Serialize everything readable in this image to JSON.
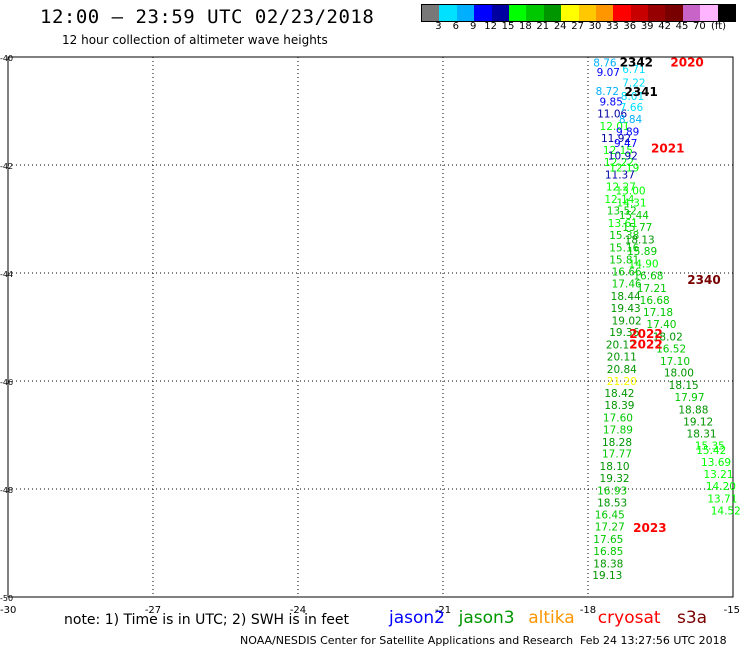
{
  "header": {
    "title": "12:00 – 23:59 UTC 02/23/2018",
    "subtitle": "12 hour collection of altimeter wave heights"
  },
  "color_scale": {
    "unit": "(ft)",
    "colors": [
      "#787878",
      "#00e0ff",
      "#00b0ff",
      "#0000ff",
      "#0000a0",
      "#00ff00",
      "#00c800",
      "#009600",
      "#ffff00",
      "#ffc800",
      "#ff9600",
      "#ff0000",
      "#c80000",
      "#960000",
      "#780000",
      "#c864c8",
      "#ffb4ff",
      "#000000"
    ],
    "ticks": [
      "3",
      "6",
      "9",
      "12",
      "15",
      "18",
      "21",
      "24",
      "27",
      "30",
      "33",
      "36",
      "39",
      "42",
      "45",
      "70"
    ]
  },
  "map": {
    "x_ticks": [
      "-30",
      "-27",
      "-24",
      "-21",
      "-18",
      "-15"
    ],
    "y_ticks": [
      "-40",
      "-42",
      "-44",
      "-46",
      "-48",
      "-50"
    ],
    "x_range": [
      -30,
      -15
    ],
    "y_range": [
      -50,
      -40
    ]
  },
  "tracks": [
    {
      "lon": -17.65,
      "lat": -40.18,
      "value": "8.76",
      "color": "#00b0ff"
    },
    {
      "lon": -17.58,
      "lat": -40.35,
      "value": "9.07",
      "color": "#0000ff"
    },
    {
      "lon": -17.6,
      "lat": -40.7,
      "value": "8.72",
      "color": "#00b0ff"
    },
    {
      "lon": -17.52,
      "lat": -40.9,
      "value": "9.85",
      "color": "#0000ff"
    },
    {
      "lon": -17.5,
      "lat": -41.12,
      "value": "11.06",
      "color": "#0000a0"
    },
    {
      "lon": -17.45,
      "lat": -41.35,
      "value": "12.01",
      "color": "#00ff00"
    },
    {
      "lon": -17.42,
      "lat": -41.57,
      "value": "11.92",
      "color": "#0000a0"
    },
    {
      "lon": -17.38,
      "lat": -41.8,
      "value": "12.15",
      "color": "#00ff00"
    },
    {
      "lon": -17.36,
      "lat": -42.02,
      "value": "12.22",
      "color": "#00ff00"
    },
    {
      "lon": -17.34,
      "lat": -42.25,
      "value": "11.37",
      "color": "#0000a0"
    },
    {
      "lon": -17.32,
      "lat": -42.47,
      "value": "12.27",
      "color": "#00ff00"
    },
    {
      "lon": -17.35,
      "lat": -42.7,
      "value": "12.14",
      "color": "#00ff00"
    },
    {
      "lon": -17.3,
      "lat": -42.92,
      "value": "13.52",
      "color": "#00c800"
    },
    {
      "lon": -17.28,
      "lat": -43.15,
      "value": "13.61",
      "color": "#00ff00"
    },
    {
      "lon": -17.25,
      "lat": -43.37,
      "value": "15.38",
      "color": "#00c800"
    },
    {
      "lon": -17.25,
      "lat": -43.6,
      "value": "15.16",
      "color": "#00c800"
    },
    {
      "lon": -17.25,
      "lat": -43.82,
      "value": "15.81",
      "color": "#00c800"
    },
    {
      "lon": -17.2,
      "lat": -44.05,
      "value": "16.66",
      "color": "#00c800"
    },
    {
      "lon": -17.2,
      "lat": -44.27,
      "value": "17.46",
      "color": "#00c800"
    },
    {
      "lon": -17.22,
      "lat": -44.5,
      "value": "18.44",
      "color": "#009600"
    },
    {
      "lon": -17.22,
      "lat": -44.72,
      "value": "19.43",
      "color": "#009600"
    },
    {
      "lon": -17.2,
      "lat": -44.95,
      "value": "19.02",
      "color": "#009600"
    },
    {
      "lon": -17.25,
      "lat": -45.17,
      "value": "19.36",
      "color": "#009600"
    },
    {
      "lon": -17.32,
      "lat": -45.4,
      "value": "20.12",
      "color": "#009600"
    },
    {
      "lon": -17.3,
      "lat": -45.62,
      "value": "20.11",
      "color": "#009600"
    },
    {
      "lon": -17.3,
      "lat": -45.85,
      "value": "20.84",
      "color": "#009600"
    },
    {
      "lon": -17.3,
      "lat": -46.07,
      "value": "21.20",
      "color": "#ffff00"
    },
    {
      "lon": -17.35,
      "lat": -46.3,
      "value": "18.42",
      "color": "#009600"
    },
    {
      "lon": -17.35,
      "lat": -46.52,
      "value": "18.39",
      "color": "#009600"
    },
    {
      "lon": -17.38,
      "lat": -46.75,
      "value": "17.60",
      "color": "#00c800"
    },
    {
      "lon": -17.38,
      "lat": -46.97,
      "value": "17.89",
      "color": "#00c800"
    },
    {
      "lon": -17.4,
      "lat": -47.2,
      "value": "18.28",
      "color": "#009600"
    },
    {
      "lon": -17.4,
      "lat": -47.42,
      "value": "17.77",
      "color": "#00c800"
    },
    {
      "lon": -17.45,
      "lat": -47.65,
      "value": "18.10",
      "color": "#009600"
    },
    {
      "lon": -17.45,
      "lat": -47.87,
      "value": "19.32",
      "color": "#009600"
    },
    {
      "lon": -17.5,
      "lat": -48.1,
      "value": "16.93",
      "color": "#00c800"
    },
    {
      "lon": -17.5,
      "lat": -48.32,
      "value": "18.53",
      "color": "#009600"
    },
    {
      "lon": -17.55,
      "lat": -48.55,
      "value": "16.45",
      "color": "#00c800"
    },
    {
      "lon": -17.55,
      "lat": -48.77,
      "value": "17.27",
      "color": "#00c800"
    },
    {
      "lon": -17.58,
      "lat": -49.0,
      "value": "17.65",
      "color": "#00c800"
    },
    {
      "lon": -17.58,
      "lat": -49.22,
      "value": "16.85",
      "color": "#00c800"
    },
    {
      "lon": -17.58,
      "lat": -49.45,
      "value": "18.38",
      "color": "#009600"
    },
    {
      "lon": -17.6,
      "lat": -49.67,
      "value": "19.13",
      "color": "#009600"
    },
    {
      "lon": -17.05,
      "lat": -40.3,
      "value": "6.71",
      "color": "#00e0ff"
    },
    {
      "lon": -17.05,
      "lat": -40.55,
      "value": "7.22",
      "color": "#00e0ff"
    },
    {
      "lon": -17.08,
      "lat": -40.8,
      "value": "8.01",
      "color": "#00e0ff"
    },
    {
      "lon": -17.1,
      "lat": -41.0,
      "value": "7.66",
      "color": "#00e0ff"
    },
    {
      "lon": -17.12,
      "lat": -41.22,
      "value": "8.84",
      "color": "#00b0ff"
    },
    {
      "lon": -17.18,
      "lat": -41.45,
      "value": "9.89",
      "color": "#0000ff"
    },
    {
      "lon": -17.22,
      "lat": -41.67,
      "value": "9.47",
      "color": "#0000ff"
    },
    {
      "lon": -17.28,
      "lat": -41.9,
      "value": "10.92",
      "color": "#0000a0"
    },
    {
      "lon": -17.25,
      "lat": -42.12,
      "value": "12.19",
      "color": "#00ff00"
    },
    {
      "lon": -17.12,
      "lat": -42.55,
      "value": "13.00",
      "color": "#00ff00"
    },
    {
      "lon": -17.1,
      "lat": -42.77,
      "value": "14.31",
      "color": "#00ff00"
    },
    {
      "lon": -17.05,
      "lat": -43.0,
      "value": "15.44",
      "color": "#00c800"
    },
    {
      "lon": -16.98,
      "lat": -43.22,
      "value": "15.77",
      "color": "#00c800"
    },
    {
      "lon": -16.93,
      "lat": -43.45,
      "value": "18.13",
      "color": "#009600"
    },
    {
      "lon": -16.88,
      "lat": -43.67,
      "value": "15.89",
      "color": "#00c800"
    },
    {
      "lon": -16.85,
      "lat": -43.9,
      "value": "14.90",
      "color": "#00ff00"
    },
    {
      "lon": -16.75,
      "lat": -44.12,
      "value": "16.68",
      "color": "#00c800"
    },
    {
      "lon": -16.68,
      "lat": -44.35,
      "value": "17.21",
      "color": "#00c800"
    },
    {
      "lon": -16.62,
      "lat": -44.57,
      "value": "16.68",
      "color": "#00c800"
    },
    {
      "lon": -16.55,
      "lat": -44.8,
      "value": "17.18",
      "color": "#00c800"
    },
    {
      "lon": -16.48,
      "lat": -45.02,
      "value": "17.40",
      "color": "#00c800"
    },
    {
      "lon": -16.35,
      "lat": -45.25,
      "value": "18.02",
      "color": "#009600"
    },
    {
      "lon": -16.28,
      "lat": -45.47,
      "value": "16.52",
      "color": "#00c800"
    },
    {
      "lon": -16.2,
      "lat": -45.7,
      "value": "17.10",
      "color": "#00c800"
    },
    {
      "lon": -16.12,
      "lat": -45.92,
      "value": "18.00",
      "color": "#009600"
    },
    {
      "lon": -16.02,
      "lat": -46.15,
      "value": "18.15",
      "color": "#009600"
    },
    {
      "lon": -15.9,
      "lat": -46.37,
      "value": "17.97",
      "color": "#00c800"
    },
    {
      "lon": -15.82,
      "lat": -46.6,
      "value": "18.88",
      "color": "#009600"
    },
    {
      "lon": -15.72,
      "lat": -46.82,
      "value": "19.12",
      "color": "#009600"
    },
    {
      "lon": -15.65,
      "lat": -47.05,
      "value": "18.31",
      "color": "#009600"
    },
    {
      "lon": -15.48,
      "lat": -47.27,
      "value": "15.35",
      "color": "#00ff00"
    },
    {
      "lon": -15.45,
      "lat": -47.35,
      "value": "15.42",
      "color": "#00ff00"
    },
    {
      "lon": -15.35,
      "lat": -47.57,
      "value": "13.69",
      "color": "#00ff00"
    },
    {
      "lon": -15.3,
      "lat": -47.8,
      "value": "13.21",
      "color": "#00ff00"
    },
    {
      "lon": -15.25,
      "lat": -48.02,
      "value": "14.20",
      "color": "#00ff00"
    },
    {
      "lon": -15.22,
      "lat": -48.25,
      "value": "13.71",
      "color": "#00ff00"
    },
    {
      "lon": -15.15,
      "lat": -48.47,
      "value": "14.52",
      "color": "#00ff00"
    }
  ],
  "time_labels": [
    {
      "lon": -17.0,
      "lat": -40.18,
      "text": "2342",
      "color": "#000000"
    },
    {
      "lon": -15.95,
      "lat": -40.18,
      "text": "2020",
      "color": "#ff0000"
    },
    {
      "lon": -16.9,
      "lat": -40.72,
      "text": "2341",
      "color": "#000000"
    },
    {
      "lon": -16.35,
      "lat": -41.77,
      "text": "2021",
      "color": "#ff0000"
    },
    {
      "lon": -15.6,
      "lat": -44.2,
      "text": "2340",
      "color": "#780000"
    },
    {
      "lon": -16.8,
      "lat": -45.2,
      "text": "2022",
      "color": "#ff0000"
    },
    {
      "lon": -16.8,
      "lat": -45.4,
      "text": "2022",
      "color": "#ff0000"
    },
    {
      "lon": -16.72,
      "lat": -48.8,
      "text": "2023",
      "color": "#ff0000"
    }
  ],
  "footer": {
    "note": "note: 1) Time is in UTC; 2) SWH is in feet",
    "satellites": [
      {
        "name": "jason2",
        "color": "#0000ff"
      },
      {
        "name": "jason3",
        "color": "#009600"
      },
      {
        "name": "altika",
        "color": "#ff9600"
      },
      {
        "name": "cryosat",
        "color": "#ff0000"
      },
      {
        "name": "s3a",
        "color": "#780000"
      }
    ],
    "credit": "NOAA/NESDIS Center for Satellite Applications and Research",
    "timestamp": "Feb 24 13:27:56 UTC 2018"
  }
}
